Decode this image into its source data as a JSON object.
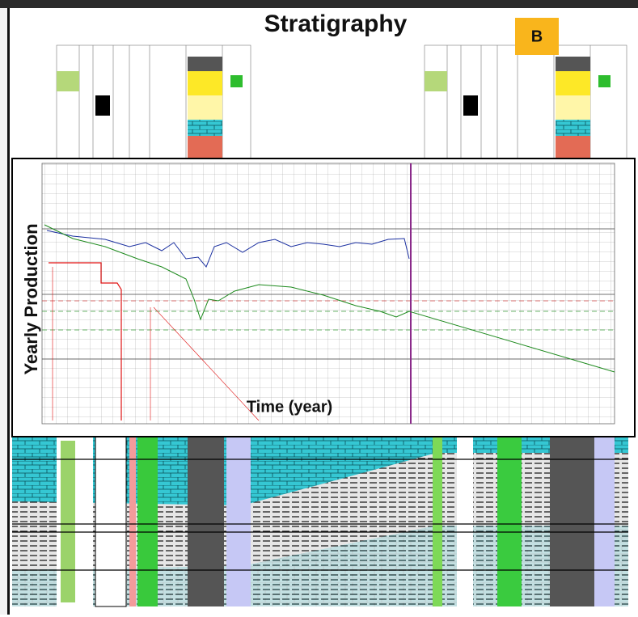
{
  "header": {
    "title": "Stratigraphy",
    "badge": "B"
  },
  "plot": {
    "y_label": "Yearly Production",
    "x_label": "Time (year)"
  }
}
